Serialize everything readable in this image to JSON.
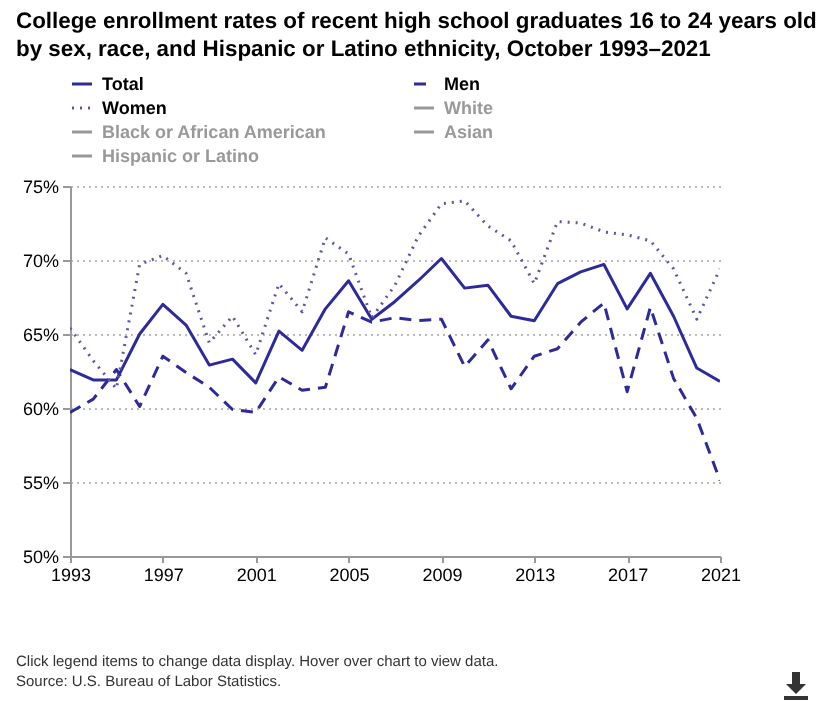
{
  "chart_data": {
    "type": "line",
    "title": "College enrollment rates of recent high school graduates 16 to 24 years old by sex, race, and Hispanic or Latino ethnicity, October 1993–2021",
    "x": [
      1993,
      1994,
      1995,
      1996,
      1997,
      1998,
      1999,
      2000,
      2001,
      2002,
      2003,
      2004,
      2005,
      2006,
      2007,
      2008,
      2009,
      2010,
      2011,
      2012,
      2013,
      2014,
      2015,
      2016,
      2017,
      2018,
      2019,
      2020,
      2021
    ],
    "series": [
      {
        "name": "Total",
        "color": "#2e2a9a",
        "line_style": "solid",
        "values": [
          62.6,
          61.9,
          61.9,
          65.0,
          67.0,
          65.6,
          62.9,
          63.3,
          61.7,
          65.2,
          63.9,
          66.7,
          68.6,
          66.0,
          67.2,
          68.6,
          70.1,
          68.1,
          68.3,
          66.2,
          65.9,
          68.4,
          69.2,
          69.7,
          66.7,
          69.1,
          66.2,
          62.7,
          61.8
        ]
      },
      {
        "name": "Men",
        "color": "#2e2a9a",
        "line_style": "dashed",
        "values": [
          59.7,
          60.6,
          62.6,
          60.1,
          63.5,
          62.4,
          61.4,
          59.9,
          59.7,
          62.1,
          61.2,
          61.4,
          66.5,
          65.8,
          66.1,
          65.9,
          66.0,
          62.8,
          64.6,
          61.3,
          63.5,
          64.0,
          65.8,
          67.1,
          61.1,
          66.8,
          62.0,
          59.3,
          55.1
        ]
      },
      {
        "name": "Women",
        "color": "#5b58a8",
        "line_style": "dotted",
        "values": [
          65.4,
          63.2,
          61.3,
          69.7,
          70.3,
          69.1,
          64.4,
          66.2,
          63.6,
          68.4,
          66.5,
          71.5,
          70.4,
          66.1,
          68.3,
          71.6,
          73.8,
          74.0,
          72.3,
          71.3,
          68.4,
          72.6,
          72.5,
          71.9,
          71.7,
          71.3,
          69.4,
          66.0,
          69.4
        ]
      },
      {
        "name": "White",
        "color": "#999999",
        "line_style": "solid",
        "values": [
          null,
          null,
          null,
          null,
          null,
          null,
          null,
          null,
          null,
          null,
          null,
          null,
          null,
          null,
          null,
          null,
          null,
          null,
          null,
          null,
          null,
          null,
          null,
          null,
          null,
          null,
          null,
          null,
          null
        ]
      },
      {
        "name": "Black or African American",
        "color": "#999999",
        "line_style": "solid",
        "values": [
          null,
          null,
          null,
          null,
          null,
          null,
          null,
          null,
          null,
          null,
          null,
          null,
          null,
          null,
          null,
          null,
          null,
          null,
          null,
          null,
          null,
          null,
          null,
          null,
          null,
          null,
          null,
          null,
          null
        ]
      },
      {
        "name": "Asian",
        "color": "#999999",
        "line_style": "solid",
        "values": [
          null,
          null,
          null,
          null,
          null,
          null,
          null,
          null,
          null,
          null,
          null,
          null,
          null,
          null,
          null,
          null,
          null,
          null,
          null,
          null,
          null,
          null,
          null,
          null,
          null,
          null,
          null,
          null,
          null
        ]
      },
      {
        "name": "Hispanic or Latino",
        "color": "#999999",
        "line_style": "solid",
        "values": [
          null,
          null,
          null,
          null,
          null,
          null,
          null,
          null,
          null,
          null,
          null,
          null,
          null,
          null,
          null,
          null,
          null,
          null,
          null,
          null,
          null,
          null,
          null,
          null,
          null,
          null,
          null,
          null,
          null
        ]
      }
    ],
    "xlim": [
      1993,
      2021
    ],
    "xticks": [
      1993,
      1997,
      2001,
      2005,
      2009,
      2013,
      2017,
      2021
    ],
    "ylim": [
      50,
      75
    ],
    "yticks": [
      {
        "value": 50,
        "label": "50%"
      },
      {
        "value": 55,
        "label": "55%"
      },
      {
        "value": 60,
        "label": "60%"
      },
      {
        "value": 65,
        "label": "65%"
      },
      {
        "value": 70,
        "label": "70%"
      },
      {
        "value": 75,
        "label": "75%"
      }
    ],
    "grid": "y",
    "legend": "top",
    "annotations": [
      "Click legend items to change data display. Hover over chart to view data.",
      "Source: U.S. Bureau of Labor Statistics."
    ]
  }
}
